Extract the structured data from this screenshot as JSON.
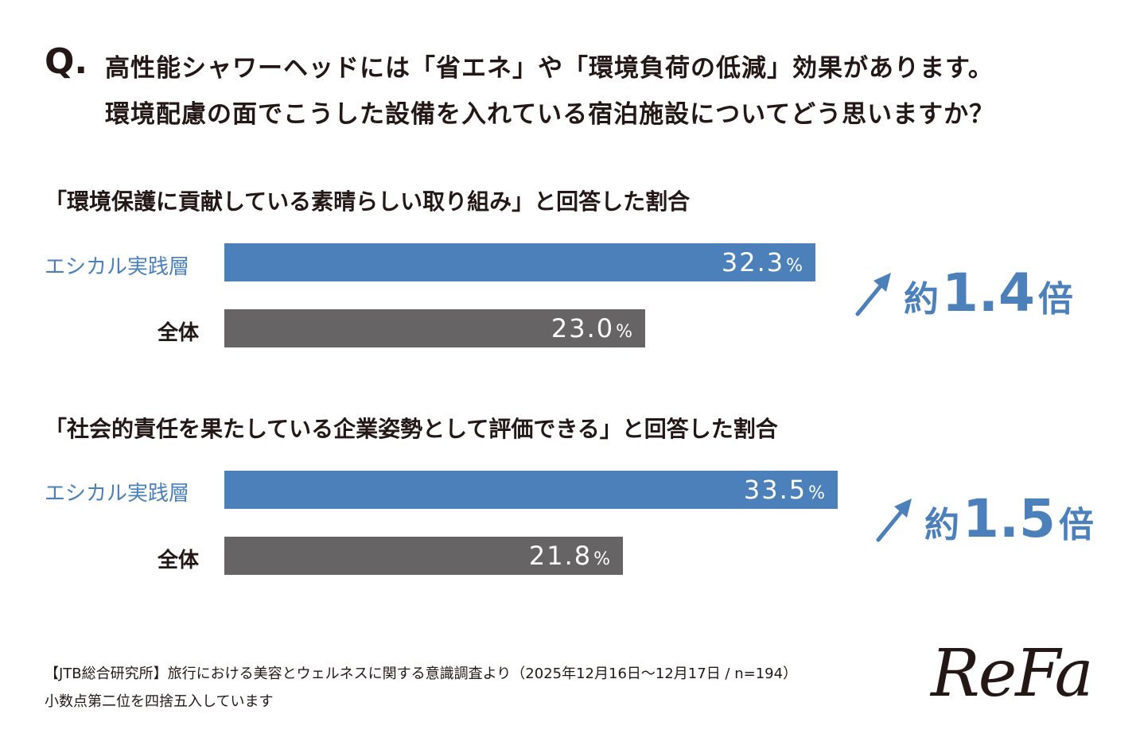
{
  "question": {
    "mark": "Q.",
    "line1": "高性能シャワーヘッドには「省エネ」や「環境負荷の低減」効果があります。",
    "line2": "環境配慮の面でこうした設備を入れている宿泊施設についてどう思いますか？"
  },
  "colors": {
    "ethical": "#4b80bb",
    "total": "#666464",
    "text": "#231815"
  },
  "chart_data": [
    {
      "type": "bar",
      "orientation": "horizontal",
      "title": "「環境保護に貢献している素晴らしい取り組み」と回答した割合",
      "categories": [
        "エシカル実践層",
        "全体"
      ],
      "values": [
        32.3,
        23.0
      ],
      "value_labels": [
        "32.3",
        "23.0"
      ],
      "unit": "%",
      "ratio": {
        "prefix": "約",
        "value": "1.4",
        "suffix": "倍"
      },
      "xlim": [
        0,
        45
      ]
    },
    {
      "type": "bar",
      "orientation": "horizontal",
      "title": "「社会的責任を果たしている企業姿勢として評価できる」と回答した割合",
      "categories": [
        "エシカル実践層",
        "全体"
      ],
      "values": [
        33.5,
        21.8
      ],
      "value_labels": [
        "33.5",
        "21.8"
      ],
      "unit": "%",
      "ratio": {
        "prefix": "約",
        "value": "1.5",
        "suffix": "倍"
      },
      "xlim": [
        0,
        45
      ]
    }
  ],
  "footer": {
    "source": "【JTB総合研究所】旅行における美容とウェルネスに関する意識調査より（2025年12月16日〜12月17日 / n=194）",
    "note": "小数点第二位を四捨五入しています"
  },
  "logo": "ReFa"
}
